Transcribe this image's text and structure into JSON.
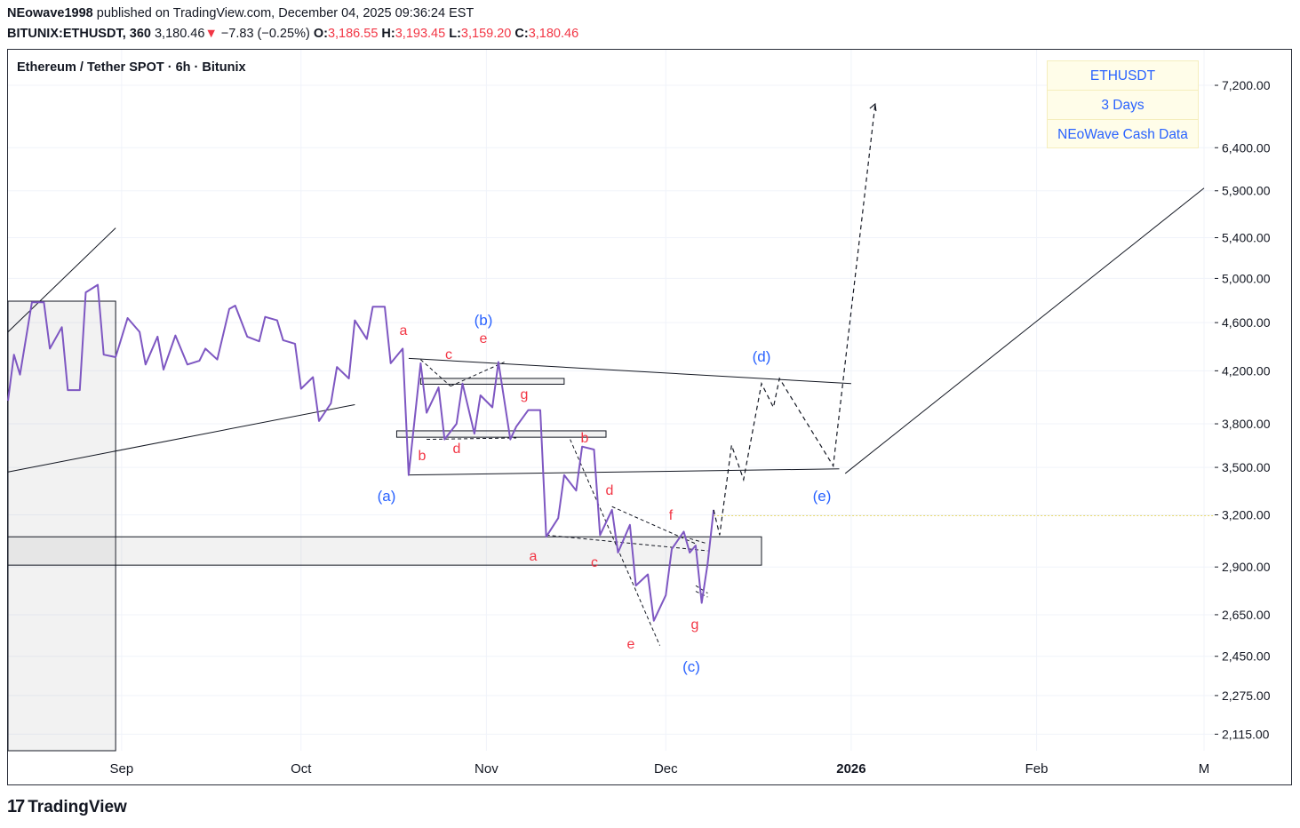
{
  "header": {
    "author": "NEowave1998",
    "published_text": "published on TradingView.com, December 04, 2025 09:36:24 EST",
    "symbol": "BITUNIX:ETHUSDT, 360",
    "last": "3,180.46",
    "down_arrow": "▼",
    "change": "−7.83 (−0.25%)",
    "o_label": "O:",
    "o_value": "3,186.55",
    "h_label": "H:",
    "h_value": "3,193.45",
    "l_label": "L:",
    "l_value": "3,159.20",
    "c_label": "C:",
    "c_value": "3,180.46"
  },
  "chart_title": "Ethereum / Tether SPOT · 6h · Bitunix",
  "legend": [
    "ETHUSDT",
    "3 Days",
    "NEoWave Cash Data"
  ],
  "footer": {
    "logo_mark": "17",
    "logo_text": "TradingView"
  },
  "colors": {
    "price_line": "#7e57c2",
    "red_label": "#f23645",
    "blue_label": "#2962ff",
    "legend_bg": "#fffde9"
  },
  "chart_data": {
    "type": "line",
    "title": "Ethereum / Tether SPOT · 6h · Bitunix",
    "y_scale": "log",
    "ylim": [
      2050,
      7700
    ],
    "y_ticks": [
      {
        "value": 7200,
        "label": "7,200.00"
      },
      {
        "value": 6400,
        "label": "6,400.00"
      },
      {
        "value": 5900,
        "label": "5,900.00"
      },
      {
        "value": 5400,
        "label": "5,400.00"
      },
      {
        "value": 5000,
        "label": "5,000.00"
      },
      {
        "value": 4600,
        "label": "4,600.00"
      },
      {
        "value": 4200,
        "label": "4,200.00"
      },
      {
        "value": 3800,
        "label": "3,800.00"
      },
      {
        "value": 3500,
        "label": "3,500.00"
      },
      {
        "value": 3200,
        "label": "3,200.00"
      },
      {
        "value": 2900,
        "label": "2,900.00"
      },
      {
        "value": 2650,
        "label": "2,650.00"
      },
      {
        "value": 2450,
        "label": "2,450.00"
      },
      {
        "value": 2275,
        "label": "2,275.00"
      },
      {
        "value": 2115,
        "label": "2,115.00"
      }
    ],
    "x_domain": [
      "2025-08-13",
      "2026-03-01"
    ],
    "x_ticks": [
      {
        "date": "2025-09-01",
        "label": "Sep"
      },
      {
        "date": "2025-10-01",
        "label": "Oct"
      },
      {
        "date": "2025-11-01",
        "label": "Nov"
      },
      {
        "date": "2025-12-01",
        "label": "Dec"
      },
      {
        "date": "2026-01-01",
        "label": "2026"
      },
      {
        "date": "2026-02-01",
        "label": "Feb"
      },
      {
        "date": "2026-03-01",
        "label": "M"
      }
    ],
    "series": [
      {
        "name": "ETHUSDT (3 Days, NEoWave Cash Data)",
        "points": [
          [
            "2025-08-13",
            3970
          ],
          [
            "2025-08-14",
            4330
          ],
          [
            "2025-08-15",
            4170
          ],
          [
            "2025-08-17",
            4780
          ],
          [
            "2025-08-19",
            4780
          ],
          [
            "2025-08-20",
            4380
          ],
          [
            "2025-08-22",
            4560
          ],
          [
            "2025-08-23",
            4050
          ],
          [
            "2025-08-25",
            4050
          ],
          [
            "2025-08-26",
            4870
          ],
          [
            "2025-08-28",
            4940
          ],
          [
            "2025-08-29",
            4330
          ],
          [
            "2025-08-31",
            4310
          ],
          [
            "2025-09-02",
            4640
          ],
          [
            "2025-09-04",
            4520
          ],
          [
            "2025-09-05",
            4250
          ],
          [
            "2025-09-07",
            4480
          ],
          [
            "2025-09-08",
            4210
          ],
          [
            "2025-09-10",
            4490
          ],
          [
            "2025-09-12",
            4250
          ],
          [
            "2025-09-14",
            4280
          ],
          [
            "2025-09-15",
            4380
          ],
          [
            "2025-09-17",
            4290
          ],
          [
            "2025-09-19",
            4720
          ],
          [
            "2025-09-20",
            4750
          ],
          [
            "2025-09-22",
            4480
          ],
          [
            "2025-09-24",
            4440
          ],
          [
            "2025-09-25",
            4650
          ],
          [
            "2025-09-27",
            4620
          ],
          [
            "2025-09-28",
            4450
          ],
          [
            "2025-09-30",
            4420
          ],
          [
            "2025-10-01",
            4060
          ],
          [
            "2025-10-03",
            4150
          ],
          [
            "2025-10-04",
            3820
          ],
          [
            "2025-10-06",
            3950
          ],
          [
            "2025-10-07",
            4230
          ],
          [
            "2025-10-09",
            4140
          ],
          [
            "2025-10-10",
            4620
          ],
          [
            "2025-10-12",
            4460
          ],
          [
            "2025-10-13",
            4740
          ],
          [
            "2025-10-15",
            4740
          ],
          [
            "2025-10-16",
            4260
          ],
          [
            "2025-10-18",
            4380
          ],
          [
            "2025-10-19",
            3450
          ],
          [
            "2025-10-21",
            4260
          ],
          [
            "2025-10-22",
            3880
          ],
          [
            "2025-10-24",
            4070
          ],
          [
            "2025-10-25",
            3690
          ],
          [
            "2025-10-27",
            3800
          ],
          [
            "2025-10-28",
            4100
          ],
          [
            "2025-10-30",
            3730
          ],
          [
            "2025-10-31",
            4010
          ],
          [
            "2025-11-02",
            3920
          ],
          [
            "2025-11-03",
            4270
          ],
          [
            "2025-11-05",
            3690
          ],
          [
            "2025-11-06",
            3780
          ],
          [
            "2025-11-08",
            3900
          ],
          [
            "2025-11-10",
            3900
          ],
          [
            "2025-11-11",
            3070
          ],
          [
            "2025-11-13",
            3180
          ],
          [
            "2025-11-14",
            3450
          ],
          [
            "2025-11-16",
            3350
          ],
          [
            "2025-11-17",
            3640
          ],
          [
            "2025-11-19",
            3620
          ],
          [
            "2025-11-20",
            3080
          ],
          [
            "2025-11-22",
            3230
          ],
          [
            "2025-11-23",
            2980
          ],
          [
            "2025-11-25",
            3140
          ],
          [
            "2025-11-26",
            2800
          ],
          [
            "2025-11-28",
            2860
          ],
          [
            "2025-11-29",
            2620
          ],
          [
            "2025-12-01",
            2750
          ],
          [
            "2025-12-02",
            3000
          ],
          [
            "2025-12-04",
            3100
          ],
          [
            "2025-12-05",
            2980
          ],
          [
            "2025-12-06",
            3020
          ],
          [
            "2025-12-07",
            2710
          ],
          [
            "2025-12-08",
            2920
          ],
          [
            "2025-12-09",
            3230
          ]
        ]
      }
    ],
    "projection": [
      [
        "2025-12-09",
        3230
      ],
      [
        "2025-12-10",
        3080
      ],
      [
        "2025-12-12",
        3650
      ],
      [
        "2025-12-14",
        3420
      ],
      [
        "2025-12-17",
        4100
      ],
      [
        "2025-12-19",
        3920
      ],
      [
        "2025-12-20",
        4140
      ],
      [
        "2025-12-29",
        3510
      ],
      [
        "2026-01-05",
        6950
      ]
    ],
    "wave_labels": [
      {
        "text": "(a)",
        "color": "blue"
      },
      {
        "text": "(b)",
        "color": "blue"
      },
      {
        "text": "(c)",
        "color": "blue"
      },
      {
        "text": "(d)",
        "color": "blue"
      },
      {
        "text": "(e)",
        "color": "blue"
      },
      {
        "text": "a",
        "color": "red"
      },
      {
        "text": "b",
        "color": "red"
      },
      {
        "text": "c",
        "color": "red"
      },
      {
        "text": "d",
        "color": "red"
      },
      {
        "text": "e",
        "color": "red"
      },
      {
        "text": "g",
        "color": "red"
      },
      {
        "text": "a",
        "color": "red"
      },
      {
        "text": "b",
        "color": "red"
      },
      {
        "text": "c",
        "color": "red"
      },
      {
        "text": "d",
        "color": "red"
      },
      {
        "text": "e",
        "color": "red"
      },
      {
        "text": "f",
        "color": "red"
      },
      {
        "text": "g",
        "color": "red"
      }
    ],
    "trendlines": [
      {
        "from": [
          "2025-08-13",
          4520
        ],
        "to": [
          "2025-08-31",
          5500
        ]
      },
      {
        "from": [
          "2025-08-13",
          3470
        ],
        "to": [
          "2025-10-10",
          3940
        ]
      },
      {
        "from": [
          "2025-10-19",
          4300
        ],
        "to": [
          "2026-01-01",
          4100
        ]
      },
      {
        "from": [
          "2025-10-19",
          3450
        ],
        "to": [
          "2025-12-30",
          3490
        ]
      },
      {
        "from": [
          "2025-12-31",
          3460
        ],
        "to": [
          "2026-03-01",
          5930
        ]
      }
    ],
    "zones": [
      {
        "from": "2025-08-13",
        "to": "2025-08-31",
        "y_low": 2050,
        "y_high": 4790
      },
      {
        "from": "2025-08-13",
        "to": "2025-12-17",
        "y_low": 2910,
        "y_high": 3070
      },
      {
        "from": "2025-10-21",
        "to": "2025-11-14",
        "y_low": 4095,
        "y_high": 4140
      },
      {
        "from": "2025-10-17",
        "to": "2025-11-21",
        "y_low": 3705,
        "y_high": 3750
      }
    ]
  }
}
